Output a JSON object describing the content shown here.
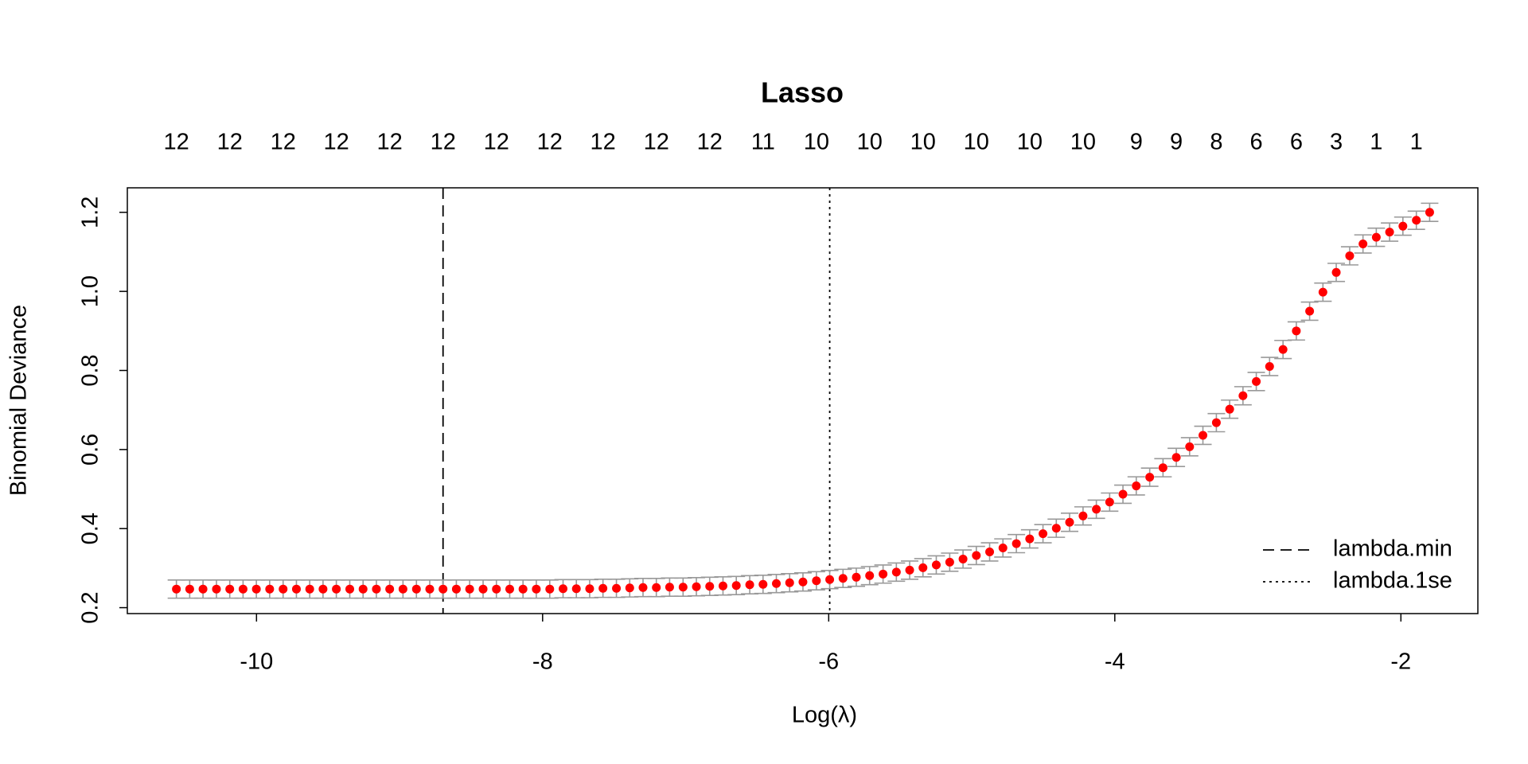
{
  "chart_data": {
    "type": "errorbar",
    "title": "Lasso",
    "x_label": "Log(λ)",
    "y_label": "Binomial Deviance",
    "xlim": [
      -10.903,
      -1.462
    ],
    "ylim": [
      0.185,
      1.262
    ],
    "xticks": [
      -10,
      -8,
      -6,
      -4,
      -2
    ],
    "yticks": [
      0.2,
      0.4,
      0.6,
      0.8,
      {
        "value": 1,
        "label": "1.0"
      },
      1.2
    ],
    "x": [
      -10.56,
      -10.467,
      -10.374,
      -10.28,
      -10.187,
      -10.094,
      -10.001,
      -9.908,
      -9.814,
      -9.721,
      -9.628,
      -9.535,
      -9.442,
      -9.348,
      -9.255,
      -9.162,
      -9.069,
      -8.976,
      -8.882,
      -8.789,
      -8.696,
      -8.603,
      -8.51,
      -8.416,
      -8.323,
      -8.23,
      -8.137,
      -8.044,
      -7.95,
      -7.857,
      -7.764,
      -7.671,
      -7.578,
      -7.484,
      -7.391,
      -7.298,
      -7.205,
      -7.112,
      -7.018,
      -6.925,
      -6.832,
      -6.739,
      -6.646,
      -6.552,
      -6.459,
      -6.366,
      -6.273,
      -6.18,
      -6.086,
      -5.993,
      -5.9,
      -5.807,
      -5.714,
      -5.62,
      -5.527,
      -5.434,
      -5.341,
      -5.248,
      -5.154,
      -5.061,
      -4.968,
      -4.875,
      -4.782,
      -4.688,
      -4.595,
      -4.502,
      -4.409,
      -4.316,
      -4.222,
      -4.129,
      -4.036,
      -3.943,
      -3.85,
      -3.756,
      -3.663,
      -3.57,
      -3.477,
      -3.384,
      -3.29,
      -3.197,
      -3.104,
      -3.011,
      -2.918,
      -2.824,
      -2.731,
      -2.638,
      -2.545,
      -2.452,
      -2.358,
      -2.265,
      -2.172,
      -2.079,
      -1.986,
      -1.892,
      -1.799
    ],
    "series": [
      {
        "color": "#ff0000",
        "error_color": "#999999",
        "error": 0.023,
        "values": [
          0.247,
          0.247,
          0.247,
          0.247,
          0.247,
          0.247,
          0.247,
          0.247,
          0.247,
          0.247,
          0.247,
          0.247,
          0.247,
          0.247,
          0.247,
          0.247,
          0.247,
          0.247,
          0.247,
          0.247,
          0.247,
          0.247,
          0.247,
          0.247,
          0.247,
          0.247,
          0.247,
          0.247,
          0.247,
          0.248,
          0.248,
          0.248,
          0.249,
          0.249,
          0.25,
          0.251,
          0.251,
          0.252,
          0.252,
          0.253,
          0.254,
          0.255,
          0.256,
          0.258,
          0.259,
          0.261,
          0.263,
          0.265,
          0.268,
          0.271,
          0.274,
          0.277,
          0.281,
          0.285,
          0.29,
          0.295,
          0.301,
          0.308,
          0.315,
          0.323,
          0.332,
          0.341,
          0.351,
          0.362,
          0.374,
          0.387,
          0.401,
          0.416,
          0.432,
          0.449,
          0.467,
          0.487,
          0.508,
          0.53,
          0.554,
          0.58,
          0.607,
          0.636,
          0.668,
          0.702,
          0.736,
          0.772,
          0.81,
          0.853,
          0.9,
          0.95,
          0.998,
          1.048,
          1.09,
          1.12,
          1.137,
          1.15,
          1.165,
          1.18,
          1.2
        ]
      }
    ],
    "top_axis": {
      "positions": [
        -10.56,
        -10.187,
        -9.814,
        -9.442,
        -9.069,
        -8.696,
        -8.323,
        -7.95,
        -7.578,
        -7.205,
        -6.832,
        -6.459,
        -6.086,
        -5.714,
        -5.341,
        -4.968,
        -4.595,
        -4.222,
        -3.85,
        -3.57,
        -3.29,
        -3.011,
        -2.731,
        -2.452,
        -2.172,
        -1.892
      ],
      "counts": [
        "12",
        "12",
        "12",
        "12",
        "12",
        "12",
        "12",
        "12",
        "12",
        "12",
        "12",
        "11",
        "10",
        "10",
        "10",
        "10",
        "10",
        "10",
        "9",
        "9",
        "8",
        "6",
        "6",
        "3",
        "1",
        "1"
      ]
    },
    "reference_lines": [
      {
        "name": "lambda.min",
        "x": -8.696,
        "dash": "dashed"
      },
      {
        "name": "lambda.1se",
        "x": -5.993,
        "dash": "dotted"
      }
    ],
    "legend": "bottomright"
  }
}
